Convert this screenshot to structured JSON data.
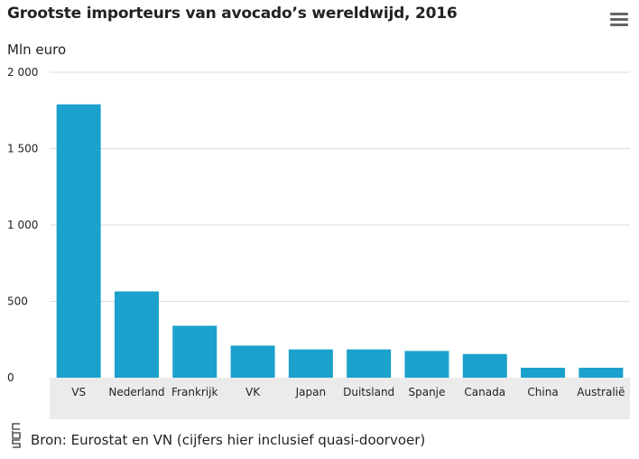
{
  "header": {
    "title": "Grootste importeurs van avocado’s wereldwijd, 2016",
    "menu_icon": "hamburger-menu-icon"
  },
  "source": "Bron: Eurostat en VN (cijfers hier inclusief quasi-doorvoer)",
  "logo_icon": "cbs-logo-icon",
  "chart_data": {
    "type": "bar",
    "title": "Grootste importeurs van avocado’s wereldwijd, 2016",
    "ylabel": "Mln euro",
    "xlabel": "",
    "categories": [
      "VS",
      "Nederland",
      "Frankrijk",
      "VK",
      "Japan",
      "Duitsland",
      "Spanje",
      "Canada",
      "China",
      "Australië"
    ],
    "values": [
      1790,
      565,
      340,
      210,
      185,
      185,
      175,
      155,
      65,
      65
    ],
    "ylim": [
      0,
      2000
    ],
    "yticks": [
      0,
      500,
      1000,
      1500,
      2000
    ],
    "ytick_labels": [
      "0",
      "500",
      "1 000",
      "1 500",
      "2 000"
    ],
    "bar_color": "#1ba1cc",
    "grid": true,
    "xaxis_band_color": "#ebebeb"
  }
}
